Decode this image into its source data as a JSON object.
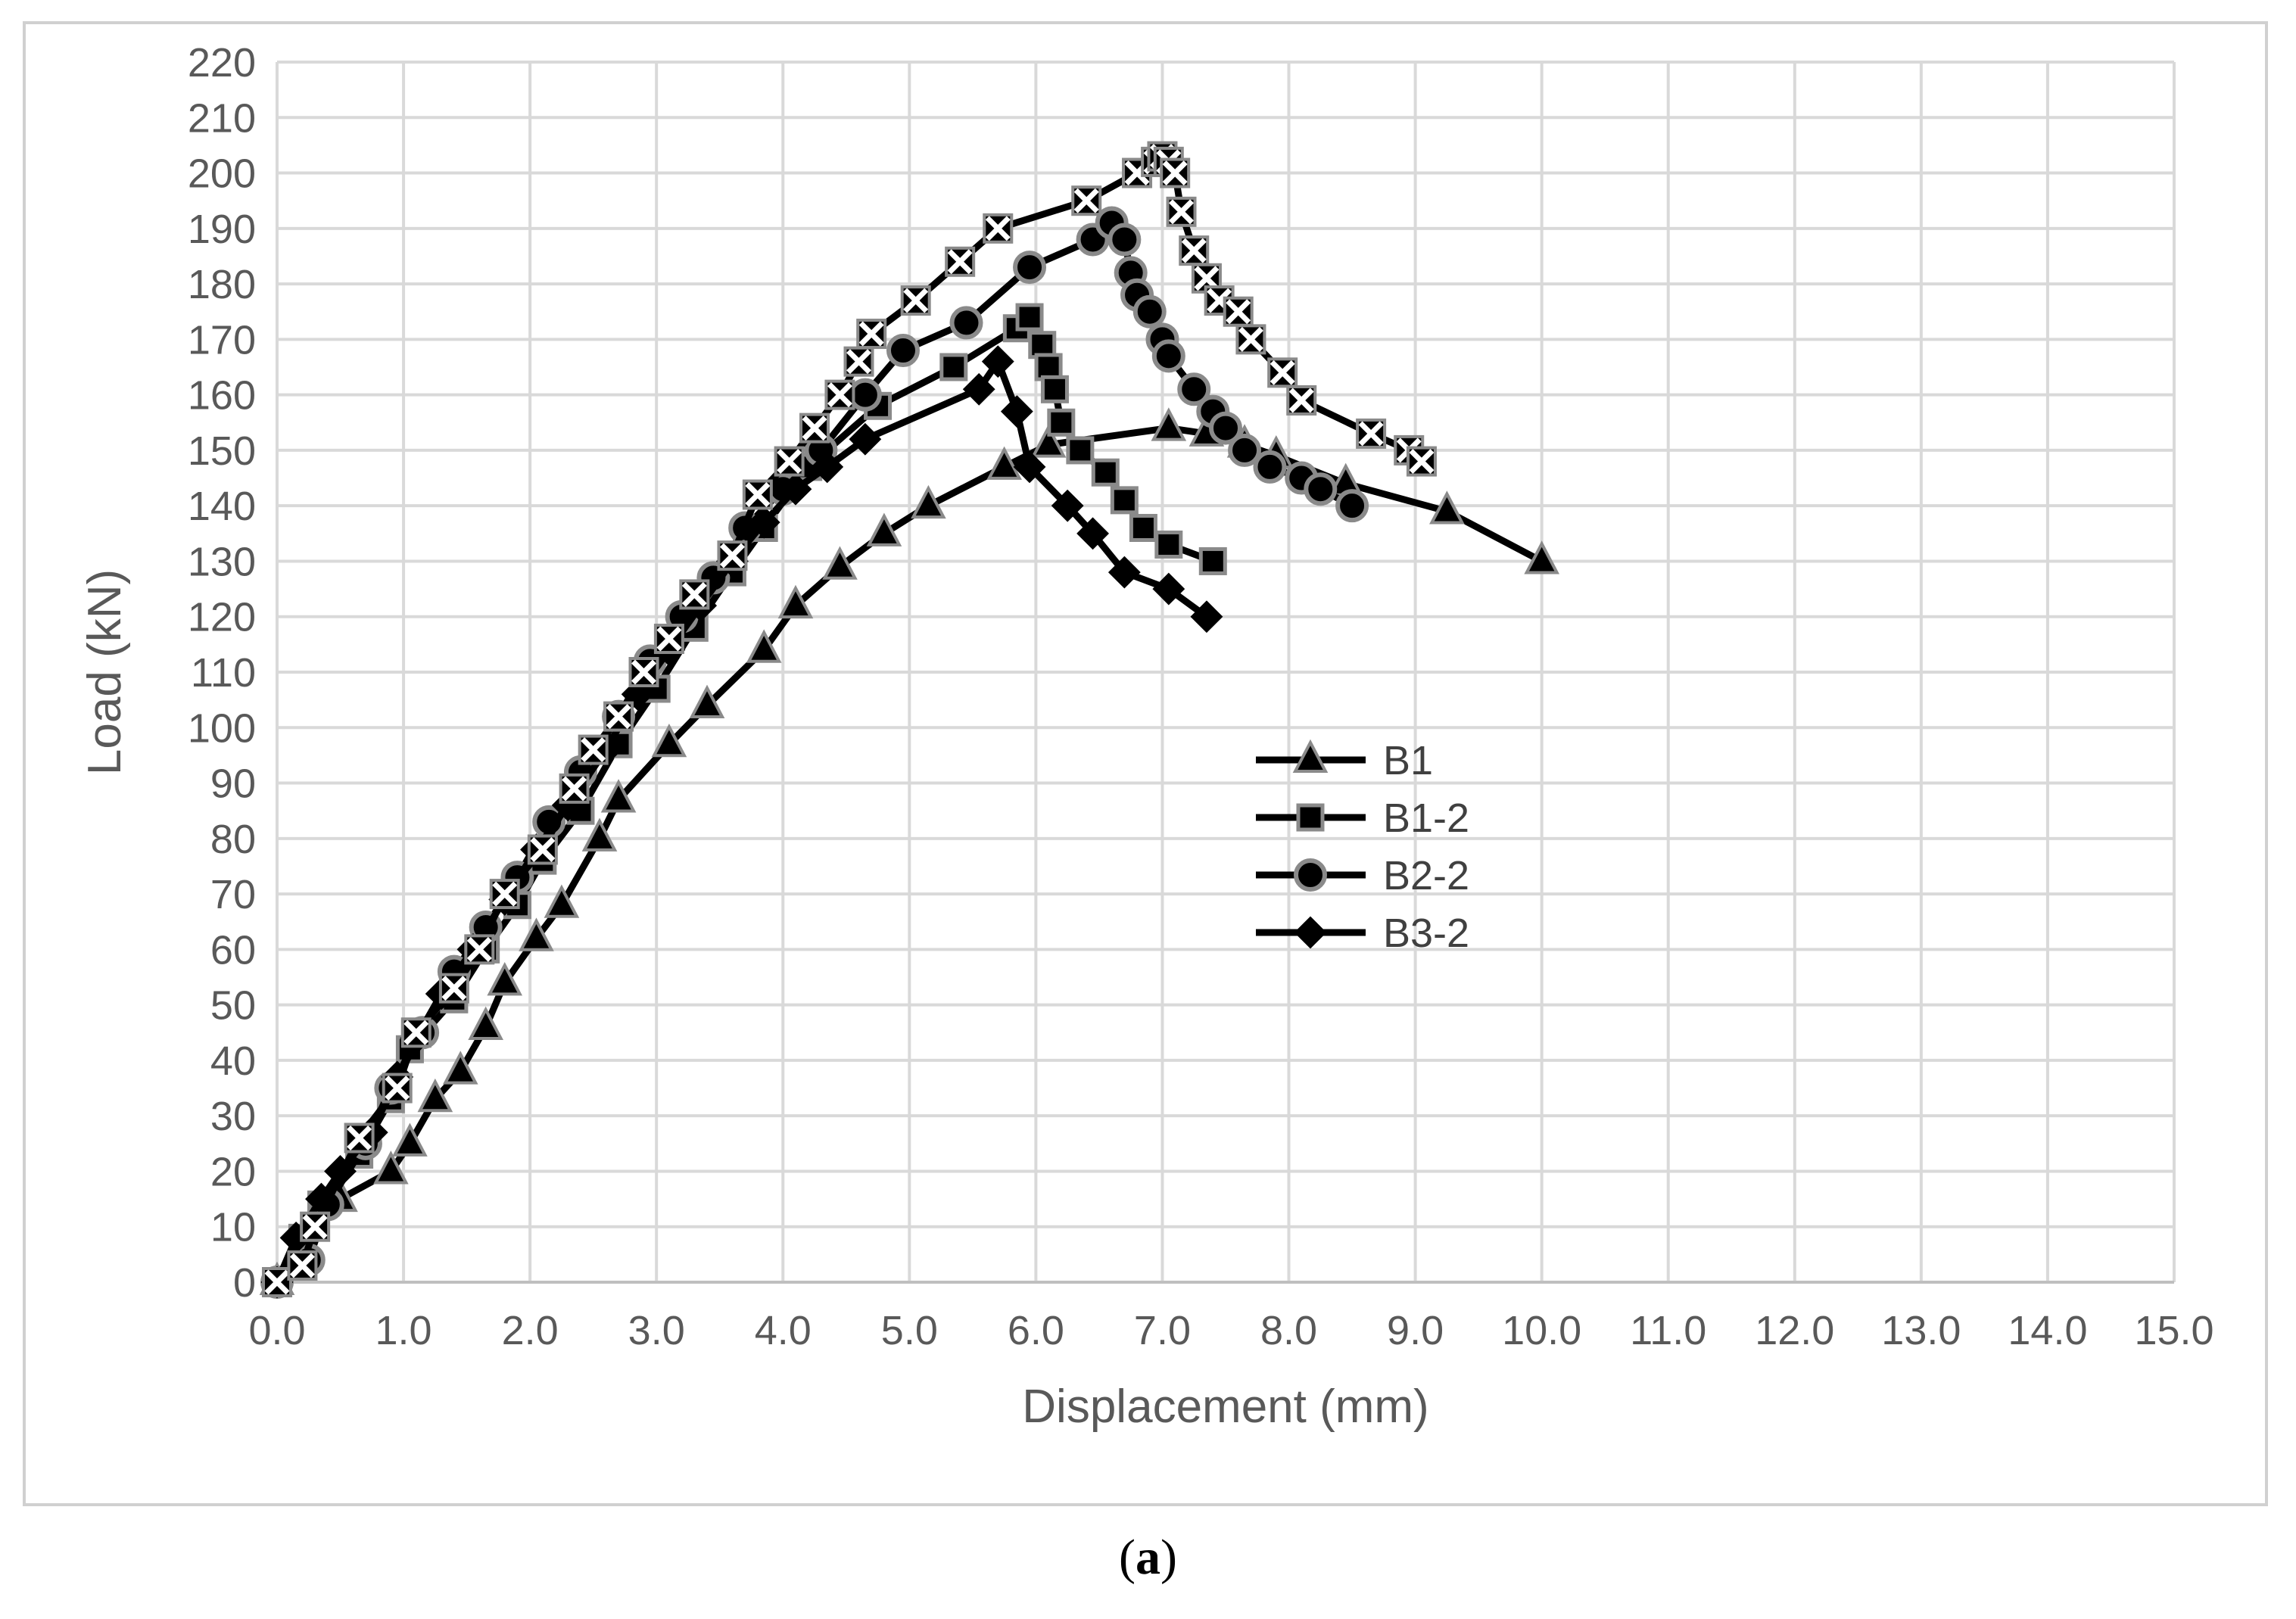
{
  "caption": {
    "open": "(",
    "letter": "a",
    "close": ")"
  },
  "chart_data": {
    "type": "line",
    "xlabel": "Displacement (mm)",
    "ylabel": "Load (kN)",
    "xlim": [
      0,
      15
    ],
    "ylim": [
      0,
      220
    ],
    "xticks": [
      "0.0",
      "1.0",
      "2.0",
      "3.0",
      "4.0",
      "5.0",
      "6.0",
      "7.0",
      "8.0",
      "9.0",
      "10.0",
      "11.0",
      "12.0",
      "13.0",
      "14.0",
      "15.0"
    ],
    "yticks": [
      "0",
      "10",
      "20",
      "30",
      "40",
      "50",
      "60",
      "70",
      "80",
      "90",
      "100",
      "110",
      "120",
      "130",
      "140",
      "150",
      "160",
      "170",
      "180",
      "190",
      "200",
      "210",
      "220"
    ],
    "grid": true,
    "legend_position": "center-right",
    "series": [
      {
        "name": "B1",
        "marker": "triangle",
        "color": "#000000",
        "x": [
          0.0,
          0.2,
          0.5,
          0.9,
          1.05,
          1.25,
          1.45,
          1.65,
          1.8,
          2.05,
          2.25,
          2.55,
          2.7,
          3.1,
          3.4,
          3.85,
          4.1,
          4.45,
          4.8,
          5.15,
          5.75,
          6.1,
          7.05,
          7.35,
          7.65,
          7.9,
          8.45,
          9.25,
          10.0
        ],
        "y": [
          0,
          5,
          15,
          20,
          25,
          33,
          38,
          46,
          54,
          62,
          68,
          80,
          87,
          97,
          104,
          114,
          122,
          129,
          135,
          140,
          147,
          151,
          154,
          153,
          151,
          149,
          144,
          139,
          130
        ]
      },
      {
        "name": "B1-2",
        "marker": "square",
        "color": "#000000",
        "x": [
          0.0,
          0.2,
          0.35,
          0.65,
          0.9,
          1.05,
          1.4,
          1.65,
          1.9,
          2.1,
          2.4,
          2.7,
          3.0,
          3.3,
          3.6,
          3.85,
          4.2,
          4.75,
          5.35,
          5.85,
          5.95,
          6.05,
          6.1,
          6.15,
          6.2,
          6.35,
          6.55,
          6.7,
          6.85,
          7.05,
          7.4
        ],
        "y": [
          0,
          8,
          14,
          23,
          33,
          42,
          51,
          60,
          68,
          76,
          85,
          97,
          107,
          118,
          128,
          136,
          147,
          158,
          165,
          172,
          174,
          169,
          165,
          161,
          155,
          150,
          146,
          141,
          136,
          133,
          130
        ]
      },
      {
        "name": "B2-2",
        "marker": "circle",
        "color": "#000000",
        "x": [
          0.0,
          0.25,
          0.4,
          0.7,
          0.9,
          1.15,
          1.4,
          1.65,
          1.9,
          2.15,
          2.4,
          2.7,
          2.95,
          3.2,
          3.45,
          3.7,
          4.0,
          4.3,
          4.65,
          4.95,
          5.45,
          5.95,
          6.45,
          6.6,
          6.7,
          6.75,
          6.8,
          6.9,
          7.0,
          7.05,
          7.25,
          7.4,
          7.5,
          7.65,
          7.85,
          8.1,
          8.25,
          8.5
        ],
        "y": [
          0,
          4,
          14,
          25,
          35,
          45,
          56,
          64,
          73,
          83,
          92,
          102,
          112,
          120,
          127,
          136,
          143,
          150,
          160,
          168,
          173,
          183,
          188,
          191,
          188,
          182,
          178,
          175,
          170,
          167,
          161,
          157,
          154,
          150,
          147,
          145,
          143,
          140
        ]
      },
      {
        "name": "B3-2",
        "marker": "diamond",
        "color": "#000000",
        "x": [
          0.0,
          0.15,
          0.35,
          0.5,
          0.75,
          0.95,
          1.1,
          1.3,
          1.55,
          1.8,
          2.05,
          2.3,
          2.6,
          2.85,
          3.1,
          3.35,
          3.6,
          3.85,
          4.1,
          4.35,
          4.65,
          5.55,
          5.7,
          5.85,
          5.95,
          6.25,
          6.45,
          6.7,
          7.05,
          7.35
        ],
        "y": [
          0,
          8,
          15,
          20,
          27,
          37,
          44,
          52,
          60,
          69,
          78,
          86,
          96,
          106,
          114,
          122,
          130,
          137,
          143,
          147,
          152,
          161,
          166,
          157,
          147,
          140,
          135,
          128,
          125,
          120
        ]
      },
      {
        "marker": "xbox",
        "color": "#000000",
        "x": [
          0.0,
          0.2,
          0.3,
          0.65,
          0.95,
          1.1,
          1.4,
          1.6,
          1.8,
          2.1,
          2.35,
          2.5,
          2.7,
          2.9,
          3.1,
          3.3,
          3.6,
          3.8,
          4.05,
          4.25,
          4.45,
          4.6,
          4.7,
          5.05,
          5.4,
          5.7,
          6.4,
          6.8,
          6.95,
          7.0,
          7.05,
          7.1,
          7.15,
          7.25,
          7.35,
          7.45,
          7.6,
          7.7,
          7.95,
          8.1,
          8.65,
          8.95,
          9.05
        ],
        "y": [
          0,
          3,
          10,
          26,
          35,
          45,
          53,
          60,
          70,
          78,
          89,
          96,
          102,
          110,
          116,
          124,
          131,
          142,
          148,
          154,
          160,
          166,
          171,
          177,
          184,
          190,
          195,
          200,
          202,
          203,
          202,
          200,
          193,
          186,
          181,
          177,
          175,
          170,
          164,
          159,
          153,
          150,
          148
        ]
      }
    ]
  }
}
